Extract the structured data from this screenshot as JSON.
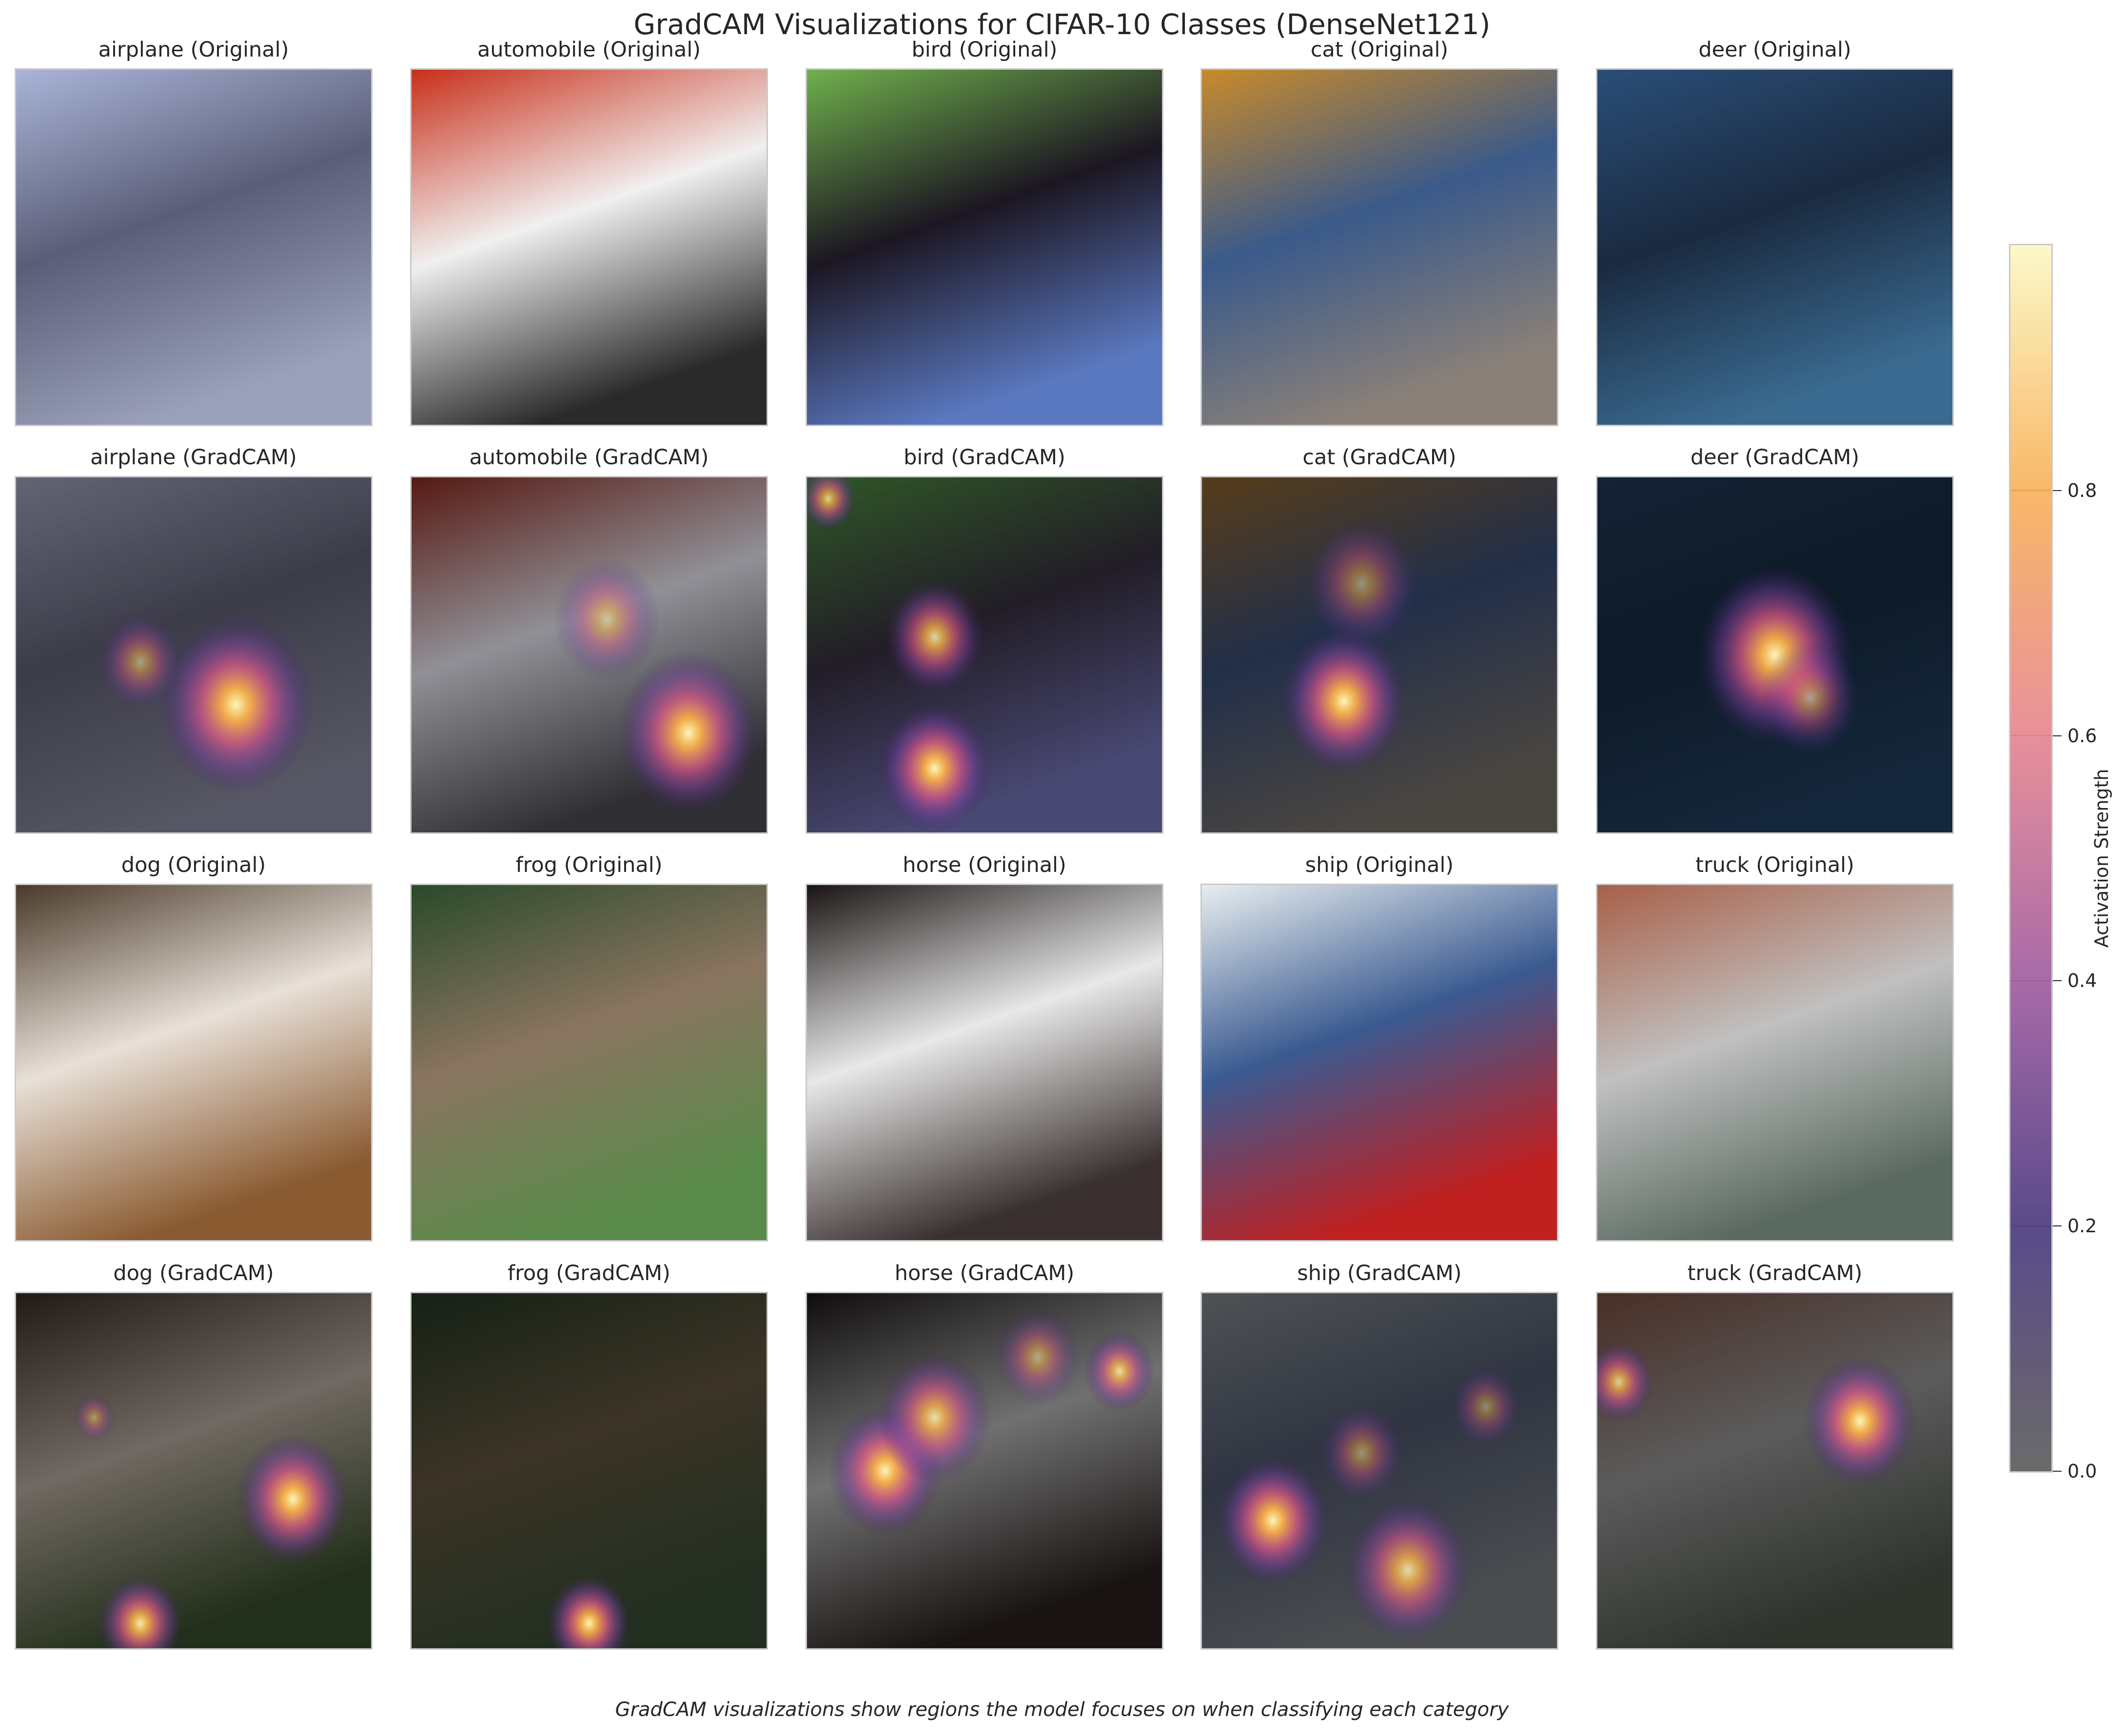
{
  "chart_data": {
    "type": "heatmap",
    "title": "GradCAM Visualizations for CIFAR-10 Classes (DenseNet121)",
    "caption": "GradCAM visualizations show regions the model focuses on when classifying each category",
    "panels": [
      {
        "class": "airplane",
        "title": "airplane (Original)",
        "kind": "original",
        "image_colors": [
          "#aab4d8",
          "#5a5e78",
          "#9aa0b8"
        ]
      },
      {
        "class": "automobile",
        "title": "automobile (Original)",
        "kind": "original",
        "image_colors": [
          "#c8301a",
          "#f0f0f0",
          "#2a2a2a"
        ]
      },
      {
        "class": "bird",
        "title": "bird (Original)",
        "kind": "original",
        "image_colors": [
          "#6fb04c",
          "#1c1622",
          "#5a78c0"
        ]
      },
      {
        "class": "cat",
        "title": "cat (Original)",
        "kind": "original",
        "image_colors": [
          "#c88a2a",
          "#3a5a8a",
          "#8a8078"
        ]
      },
      {
        "class": "deer",
        "title": "deer (Original)",
        "kind": "original",
        "image_colors": [
          "#2a4e78",
          "#1a2a40",
          "#3a6a90"
        ]
      },
      {
        "class": "airplane",
        "title": "airplane (GradCAM)",
        "kind": "gradcam",
        "image_colors": [
          "#7a7a90",
          "#4a4a5a",
          "#6a6a7a"
        ],
        "hotspots": [
          {
            "x": 0.62,
            "y": 0.64,
            "r": 0.22,
            "v": 1.0
          },
          {
            "x": 0.35,
            "y": 0.52,
            "r": 0.12,
            "v": 0.55
          }
        ]
      },
      {
        "class": "automobile",
        "title": "automobile (GradCAM)",
        "kind": "gradcam",
        "image_colors": [
          "#6a2018",
          "#b0b0b8",
          "#3a3a40"
        ],
        "hotspots": [
          {
            "x": 0.78,
            "y": 0.72,
            "r": 0.2,
            "v": 1.0
          },
          {
            "x": 0.55,
            "y": 0.4,
            "r": 0.15,
            "v": 0.55
          }
        ]
      },
      {
        "class": "bird",
        "title": "bird (GradCAM)",
        "kind": "gradcam",
        "image_colors": [
          "#3a6a30",
          "#2a2430",
          "#5a5a90"
        ],
        "hotspots": [
          {
            "x": 0.36,
            "y": 0.82,
            "r": 0.16,
            "v": 1.0
          },
          {
            "x": 0.36,
            "y": 0.45,
            "r": 0.14,
            "v": 0.85
          },
          {
            "x": 0.06,
            "y": 0.06,
            "r": 0.08,
            "v": 0.8
          }
        ]
      },
      {
        "class": "cat",
        "title": "cat (GradCAM)",
        "kind": "gradcam",
        "image_colors": [
          "#6a4a20",
          "#2a3a5a",
          "#5a5550"
        ],
        "hotspots": [
          {
            "x": 0.4,
            "y": 0.63,
            "r": 0.18,
            "v": 1.0
          },
          {
            "x": 0.45,
            "y": 0.3,
            "r": 0.16,
            "v": 0.5
          }
        ]
      },
      {
        "class": "deer",
        "title": "deer (GradCAM)",
        "kind": "gradcam",
        "image_colors": [
          "#1a2a40",
          "#102030",
          "#1a3048"
        ],
        "hotspots": [
          {
            "x": 0.5,
            "y": 0.5,
            "r": 0.22,
            "v": 1.0
          },
          {
            "x": 0.6,
            "y": 0.62,
            "r": 0.14,
            "v": 0.55
          }
        ]
      },
      {
        "class": "dog",
        "title": "dog (Original)",
        "kind": "original",
        "image_colors": [
          "#4a3a2a",
          "#e8e0d8",
          "#8a5a30"
        ]
      },
      {
        "class": "frog",
        "title": "frog (Original)",
        "kind": "original",
        "image_colors": [
          "#2a4a2a",
          "#8a7460",
          "#5a8a4a"
        ]
      },
      {
        "class": "horse",
        "title": "horse (Original)",
        "kind": "original",
        "image_colors": [
          "#1a1414",
          "#e8e8e8",
          "#3a3030"
        ]
      },
      {
        "class": "ship",
        "title": "ship (Original)",
        "kind": "original",
        "image_colors": [
          "#e8eef0",
          "#3a5a90",
          "#c02020"
        ]
      },
      {
        "class": "truck",
        "title": "truck (Original)",
        "kind": "original",
        "image_colors": [
          "#a86048",
          "#c0c0c0",
          "#5a6a60"
        ]
      },
      {
        "class": "dog",
        "title": "dog (GradCAM)",
        "kind": "gradcam",
        "image_colors": [
          "#2a2018",
          "#8a8078",
          "#2a3a20"
        ],
        "hotspots": [
          {
            "x": 0.78,
            "y": 0.58,
            "r": 0.16,
            "v": 1.0
          },
          {
            "x": 0.35,
            "y": 0.93,
            "r": 0.12,
            "v": 0.95
          },
          {
            "x": 0.22,
            "y": 0.35,
            "r": 0.06,
            "v": 0.45
          }
        ]
      },
      {
        "class": "frog",
        "title": "frog (GradCAM)",
        "kind": "gradcam",
        "image_colors": [
          "#1a2a1a",
          "#4a4030",
          "#2a3a28"
        ],
        "hotspots": [
          {
            "x": 0.5,
            "y": 0.93,
            "r": 0.12,
            "v": 1.0
          }
        ]
      },
      {
        "class": "horse",
        "title": "horse (GradCAM)",
        "kind": "gradcam",
        "image_colors": [
          "#141010",
          "#8a8a8a",
          "#201818"
        ],
        "hotspots": [
          {
            "x": 0.22,
            "y": 0.5,
            "r": 0.16,
            "v": 1.0
          },
          {
            "x": 0.36,
            "y": 0.35,
            "r": 0.16,
            "v": 0.85
          },
          {
            "x": 0.88,
            "y": 0.22,
            "r": 0.1,
            "v": 0.85
          },
          {
            "x": 0.65,
            "y": 0.18,
            "r": 0.12,
            "v": 0.55
          }
        ]
      },
      {
        "class": "ship",
        "title": "ship (GradCAM)",
        "kind": "gradcam",
        "image_colors": [
          "#606468",
          "#3a4050",
          "#5a5e62"
        ],
        "hotspots": [
          {
            "x": 0.2,
            "y": 0.64,
            "r": 0.16,
            "v": 1.0
          },
          {
            "x": 0.58,
            "y": 0.78,
            "r": 0.18,
            "v": 0.85
          },
          {
            "x": 0.8,
            "y": 0.32,
            "r": 0.1,
            "v": 0.45
          },
          {
            "x": 0.45,
            "y": 0.45,
            "r": 0.12,
            "v": 0.5
          }
        ]
      },
      {
        "class": "truck",
        "title": "truck (GradCAM)",
        "kind": "gradcam",
        "image_colors": [
          "#5a3a30",
          "#707070",
          "#3a4038"
        ],
        "hotspots": [
          {
            "x": 0.74,
            "y": 0.36,
            "r": 0.16,
            "v": 1.0
          },
          {
            "x": 0.06,
            "y": 0.25,
            "r": 0.1,
            "v": 0.8
          }
        ]
      }
    ],
    "colorbar": {
      "label": "Activation Strength",
      "min": 0.0,
      "max": 1.0,
      "ticks": [
        0.0,
        0.2,
        0.4,
        0.6,
        0.8
      ],
      "tick_labels": [
        "0.0",
        "0.2",
        "0.4",
        "0.6",
        "0.8"
      ],
      "colormap": "inferno",
      "stops": [
        "#6a6a6a",
        "#5a4a8a",
        "#a86aa8",
        "#e8909a",
        "#f8b868",
        "#fcf8c8"
      ]
    }
  }
}
